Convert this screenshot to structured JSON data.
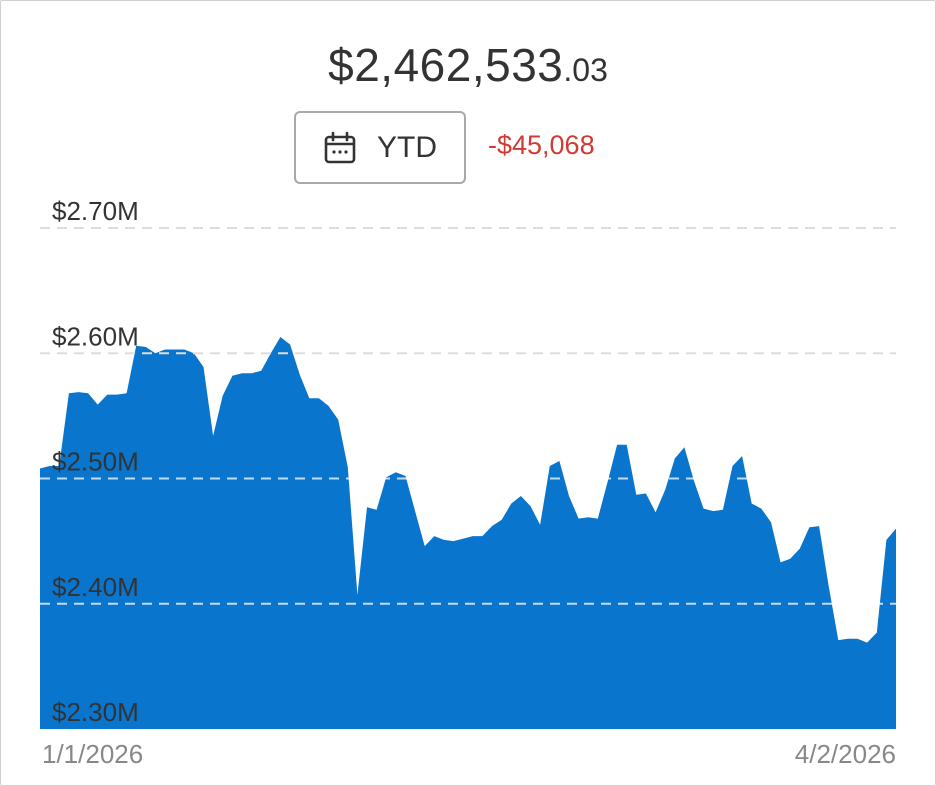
{
  "header": {
    "balance_main": "$2,462,533",
    "balance_cents": ".03",
    "range_label": "YTD",
    "change": "-$45,068"
  },
  "icons": {
    "range": "calendar-icon"
  },
  "colors": {
    "area_fill": "#0a75cc",
    "negative": "#d13a32",
    "text": "#333333",
    "grid": "#dddddd"
  },
  "chart_data": {
    "type": "area",
    "x_start": "1/1/2026",
    "x_end": "4/2/2026",
    "x_tick_labels": [
      "1/1/2026",
      "4/2/2026"
    ],
    "y_tick_labels": [
      "$2.70M",
      "$2.60M",
      "$2.50M",
      "$2.40M",
      "$2.30M"
    ],
    "y_ticks": [
      2700000,
      2600000,
      2500000,
      2400000,
      2300000
    ],
    "ylim": [
      2300000,
      2700000
    ],
    "grid": "horizontal-dashed",
    "series": [
      {
        "values": [
          2508000,
          2510000,
          2510000,
          2568000,
          2569000,
          2568000,
          2559000,
          2567000,
          2567000,
          2568000,
          2606000,
          2605000,
          2600000,
          2603000,
          2603000,
          2603000,
          2600000,
          2589000,
          2534000,
          2566000,
          2582000,
          2584000,
          2584000,
          2586000,
          2600000,
          2613000,
          2607000,
          2583000,
          2564000,
          2564000,
          2558000,
          2547000,
          2509000,
          2407000,
          2477000,
          2475000,
          2501000,
          2505000,
          2502000,
          2474000,
          2446000,
          2454000,
          2451000,
          2450000,
          2452000,
          2454000,
          2454000,
          2462000,
          2467000,
          2480000,
          2486000,
          2478000,
          2463000,
          2510000,
          2514000,
          2486000,
          2468000,
          2469000,
          2468000,
          2497000,
          2527000,
          2527000,
          2487000,
          2488000,
          2473000,
          2491000,
          2516000,
          2525000,
          2498000,
          2476000,
          2474000,
          2475000,
          2510000,
          2518000,
          2480000,
          2476000,
          2465000,
          2433000,
          2436000,
          2444000,
          2461000,
          2462000,
          2414000,
          2371000,
          2372000,
          2372000,
          2369000,
          2377000,
          2451000,
          2460000
        ]
      }
    ]
  }
}
